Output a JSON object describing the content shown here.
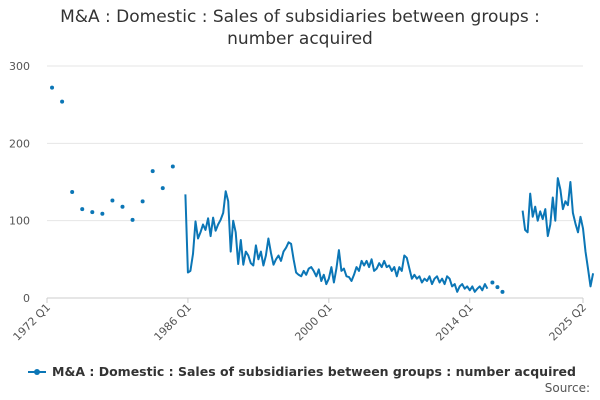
{
  "chart_data": {
    "type": "line",
    "title": "M&A : Domestic : Sales of subsidiaries between groups : number acquired",
    "title_lines": [
      "M&A : Domestic : Sales of subsidiaries between groups :",
      "number acquired"
    ],
    "xlabel": "",
    "ylabel": "",
    "x_ticks": [
      "1972 Q1",
      "1986 Q1",
      "2000 Q1",
      "2014 Q1",
      "2025 Q2"
    ],
    "y_ticks": [
      0,
      100,
      200,
      300
    ],
    "ylim": [
      0,
      300
    ],
    "xlim": [
      1972.0,
      2025.25
    ],
    "grid": "horizontal",
    "legend_position": "bottom",
    "source_label": "Source:",
    "colors": {
      "series": "#0b76b6",
      "grid": "#e6e6e6",
      "axis": "#cccccc"
    },
    "series": [
      {
        "name": "M&A : Domestic : Sales of subsidiaries between groups : number acquired",
        "annual_points": [
          [
            1972.5,
            272
          ],
          [
            1973.5,
            254
          ],
          [
            1974.5,
            137
          ],
          [
            1975.5,
            115
          ],
          [
            1976.5,
            111
          ],
          [
            1977.5,
            109
          ],
          [
            1978.5,
            126
          ],
          [
            1979.5,
            118
          ],
          [
            1980.5,
            101
          ],
          [
            1981.5,
            125
          ],
          [
            1982.5,
            164
          ],
          [
            1983.5,
            142
          ],
          [
            1984.5,
            170
          ]
        ],
        "quarterly_segments": [
          [
            [
              1985.75,
              134
            ],
            [
              1986.0,
              33
            ],
            [
              1986.25,
              35
            ],
            [
              1986.5,
              57
            ],
            [
              1986.75,
              99
            ],
            [
              1987.0,
              77
            ],
            [
              1987.25,
              85
            ],
            [
              1987.5,
              95
            ],
            [
              1987.75,
              88
            ],
            [
              1988.0,
              103
            ],
            [
              1988.25,
              80
            ],
            [
              1988.5,
              104
            ],
            [
              1988.75,
              87
            ],
            [
              1989.0,
              95
            ],
            [
              1989.25,
              101
            ],
            [
              1989.5,
              110
            ],
            [
              1989.75,
              138
            ],
            [
              1990.0,
              125
            ],
            [
              1990.25,
              60
            ],
            [
              1990.5,
              100
            ],
            [
              1990.75,
              85
            ],
            [
              1991.0,
              44
            ],
            [
              1991.25,
              75
            ],
            [
              1991.5,
              43
            ],
            [
              1991.75,
              60
            ],
            [
              1992.0,
              55
            ],
            [
              1992.25,
              45
            ],
            [
              1992.5,
              42
            ],
            [
              1992.75,
              68
            ],
            [
              1993.0,
              50
            ],
            [
              1993.25,
              60
            ],
            [
              1993.5,
              42
            ],
            [
              1993.75,
              55
            ],
            [
              1994.0,
              77
            ],
            [
              1994.25,
              58
            ],
            [
              1994.5,
              43
            ],
            [
              1994.75,
              50
            ],
            [
              1995.0,
              55
            ],
            [
              1995.25,
              48
            ],
            [
              1995.5,
              60
            ],
            [
              1995.75,
              65
            ],
            [
              1996.0,
              72
            ],
            [
              1996.25,
              70
            ],
            [
              1996.5,
              50
            ],
            [
              1996.75,
              33
            ],
            [
              1997.0,
              30
            ],
            [
              1997.25,
              28
            ],
            [
              1997.5,
              35
            ],
            [
              1997.75,
              30
            ],
            [
              1998.0,
              38
            ],
            [
              1998.25,
              40
            ],
            [
              1998.5,
              35
            ],
            [
              1998.75,
              28
            ],
            [
              1999.0,
              37
            ],
            [
              1999.25,
              22
            ],
            [
              1999.5,
              30
            ],
            [
              1999.75,
              18
            ],
            [
              2000.0,
              25
            ],
            [
              2000.25,
              40
            ],
            [
              2000.5,
              20
            ],
            [
              2000.75,
              38
            ],
            [
              2001.0,
              62
            ],
            [
              2001.25,
              35
            ],
            [
              2001.5,
              38
            ],
            [
              2001.75,
              28
            ],
            [
              2002.0,
              27
            ],
            [
              2002.25,
              22
            ],
            [
              2002.5,
              30
            ],
            [
              2002.75,
              40
            ],
            [
              2003.0,
              35
            ],
            [
              2003.25,
              48
            ],
            [
              2003.5,
              42
            ],
            [
              2003.75,
              48
            ],
            [
              2004.0,
              40
            ],
            [
              2004.25,
              50
            ],
            [
              2004.5,
              35
            ],
            [
              2004.75,
              38
            ],
            [
              2005.0,
              45
            ],
            [
              2005.25,
              40
            ],
            [
              2005.5,
              48
            ],
            [
              2005.75,
              40
            ],
            [
              2006.0,
              42
            ],
            [
              2006.25,
              35
            ],
            [
              2006.5,
              40
            ],
            [
              2006.75,
              28
            ],
            [
              2007.0,
              40
            ],
            [
              2007.25,
              35
            ],
            [
              2007.5,
              55
            ],
            [
              2007.75,
              52
            ],
            [
              2008.0,
              38
            ],
            [
              2008.25,
              25
            ],
            [
              2008.5,
              30
            ],
            [
              2008.75,
              25
            ],
            [
              2009.0,
              28
            ],
            [
              2009.25,
              20
            ],
            [
              2009.5,
              25
            ],
            [
              2009.75,
              22
            ],
            [
              2010.0,
              28
            ],
            [
              2010.25,
              18
            ],
            [
              2010.5,
              25
            ],
            [
              2010.75,
              28
            ],
            [
              2011.0,
              20
            ],
            [
              2011.25,
              25
            ],
            [
              2011.5,
              18
            ],
            [
              2011.75,
              28
            ],
            [
              2012.0,
              25
            ],
            [
              2012.25,
              15
            ],
            [
              2012.5,
              18
            ],
            [
              2012.75,
              8
            ],
            [
              2013.0,
              15
            ],
            [
              2013.25,
              18
            ],
            [
              2013.5,
              12
            ],
            [
              2013.75,
              15
            ],
            [
              2014.0,
              10
            ],
            [
              2014.25,
              15
            ],
            [
              2014.5,
              8
            ],
            [
              2014.75,
              12
            ],
            [
              2015.0,
              15
            ],
            [
              2015.25,
              10
            ],
            [
              2015.5,
              18
            ],
            [
              2015.75,
              12
            ]
          ],
          [
            [
              2019.25,
              113
            ],
            [
              2019.5,
              88
            ],
            [
              2019.75,
              85
            ],
            [
              2020.0,
              135
            ],
            [
              2020.25,
              105
            ],
            [
              2020.5,
              118
            ],
            [
              2020.75,
              100
            ],
            [
              2021.0,
              112
            ],
            [
              2021.25,
              102
            ],
            [
              2021.5,
              115
            ],
            [
              2021.75,
              80
            ],
            [
              2022.0,
              95
            ],
            [
              2022.25,
              130
            ],
            [
              2022.5,
              100
            ],
            [
              2022.75,
              155
            ],
            [
              2023.0,
              140
            ],
            [
              2023.25,
              115
            ],
            [
              2023.5,
              125
            ],
            [
              2023.75,
              120
            ],
            [
              2024.0,
              150
            ],
            [
              2024.25,
              110
            ],
            [
              2024.5,
              96
            ],
            [
              2024.75,
              85
            ],
            [
              2025.0,
              105
            ],
            [
              2025.25,
              90
            ],
            [
              2025.5,
              60
            ],
            [
              2025.75,
              38
            ],
            [
              2026.0,
              15
            ],
            [
              2026.25,
              32
            ]
          ]
        ],
        "isolated_points": [
          [
            2016.25,
            20
          ],
          [
            2016.75,
            14
          ],
          [
            2017.25,
            8
          ]
        ]
      }
    ]
  }
}
